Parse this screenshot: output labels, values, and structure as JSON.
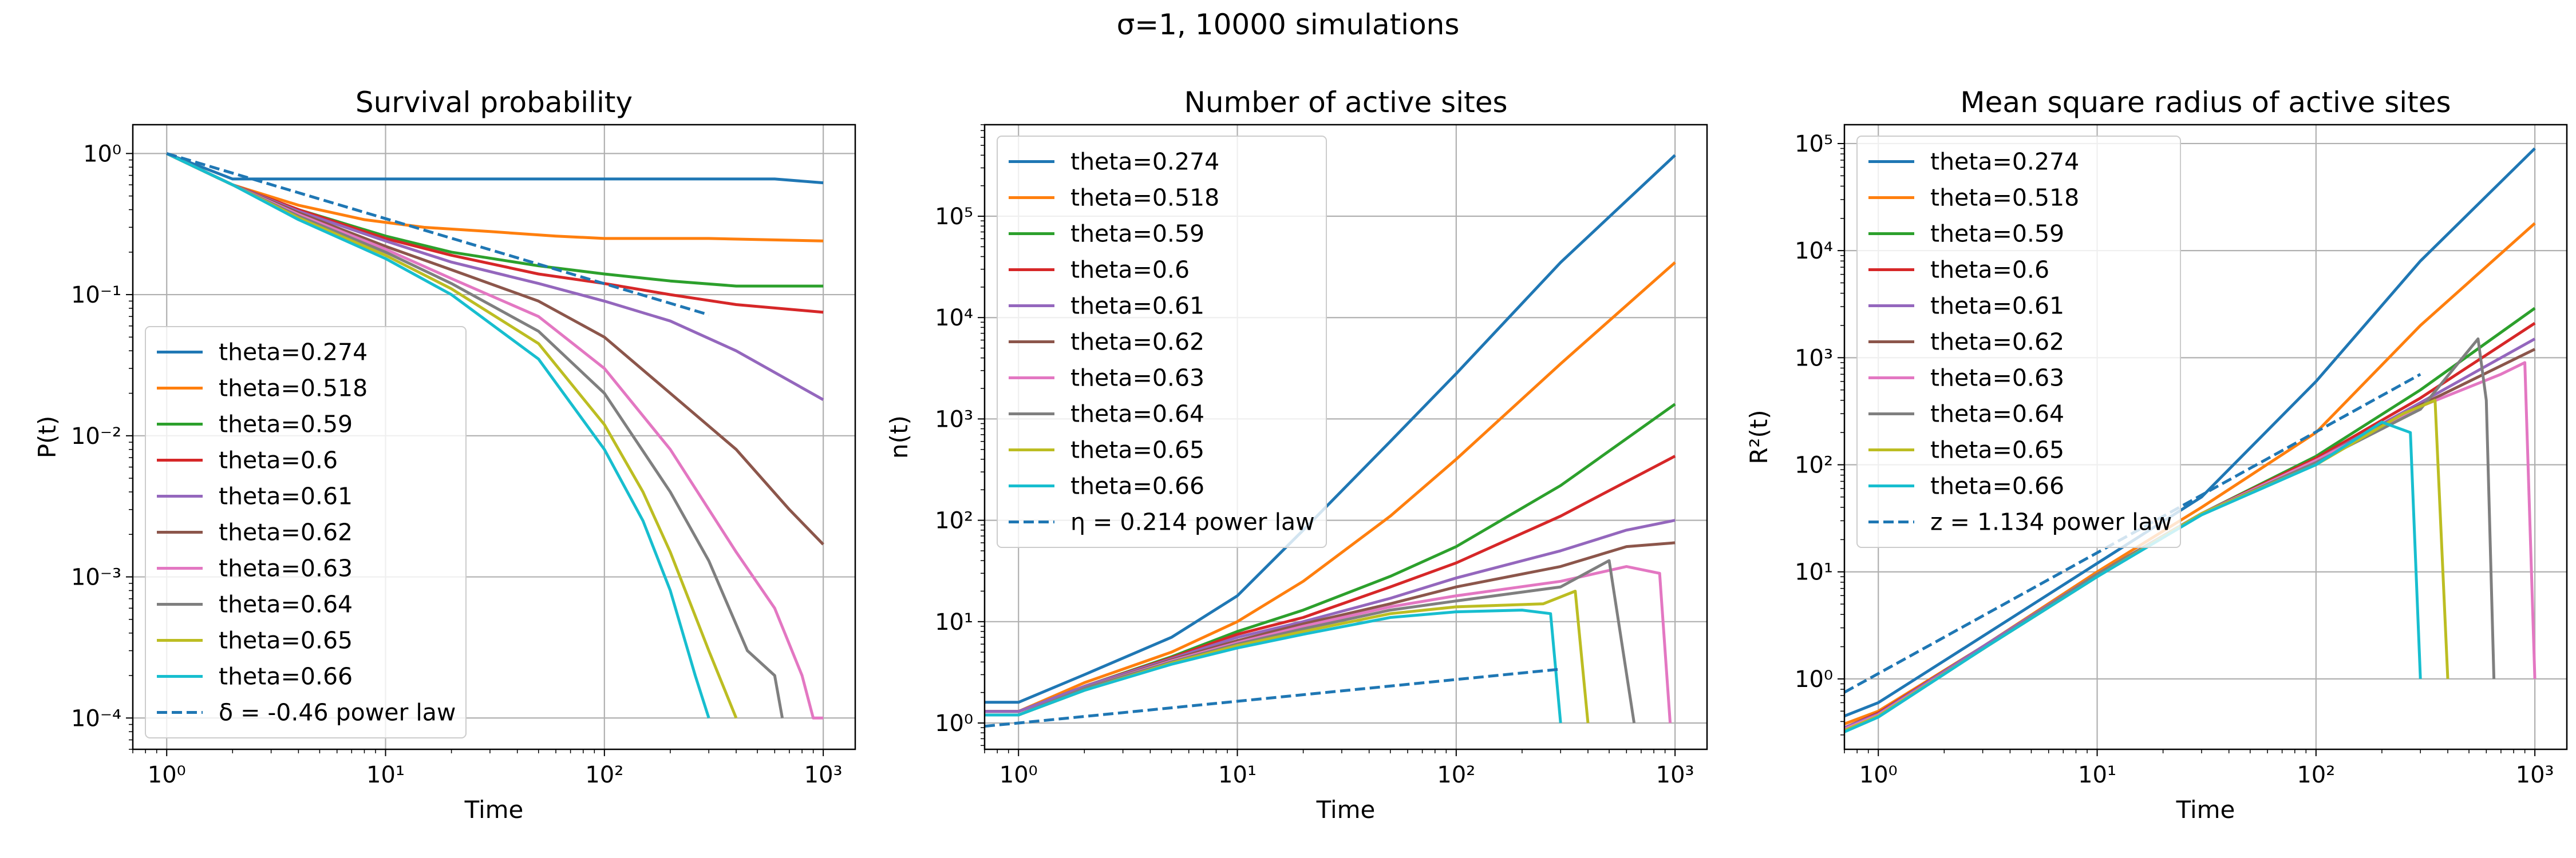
{
  "suptitle": "σ=1, 10000 simulations",
  "colors": {
    "theta=0.274": "#1f77b4",
    "theta=0.518": "#ff7f0e",
    "theta=0.59": "#2ca02c",
    "theta=0.6": "#d62728",
    "theta=0.61": "#9467bd",
    "theta=0.62": "#8c564b",
    "theta=0.63": "#e377c2",
    "theta=0.64": "#7f7f7f",
    "theta=0.65": "#bcbd22",
    "theta=0.66": "#17becf",
    "fit": "#1f77b4"
  },
  "chart_data": [
    {
      "type": "line",
      "title": "Survival probability",
      "xlabel": "Time",
      "ylabel": "P(t)",
      "xscale": "log",
      "yscale": "log",
      "xlim": [
        0.7,
        1400
      ],
      "ylim": [
        6e-05,
        1.6
      ],
      "xticks": [
        "10⁰",
        "10¹",
        "10²",
        "10³"
      ],
      "yticks": [
        "10⁻⁴",
        "10⁻³",
        "10⁻²",
        "10⁻¹",
        "10⁰"
      ],
      "grid": true,
      "legend_position": "lower-left",
      "series": [
        {
          "name": "theta=0.274",
          "x": [
            1,
            2,
            5,
            10,
            30,
            100,
            300,
            600,
            1000
          ],
          "y": [
            1,
            0.66,
            0.66,
            0.66,
            0.66,
            0.66,
            0.66,
            0.66,
            0.62
          ]
        },
        {
          "name": "theta=0.518",
          "x": [
            1,
            2,
            4,
            8,
            15,
            30,
            60,
            100,
            300,
            1000
          ],
          "y": [
            1,
            0.6,
            0.43,
            0.34,
            0.3,
            0.28,
            0.26,
            0.25,
            0.25,
            0.24
          ]
        },
        {
          "name": "theta=0.59",
          "x": [
            1,
            2,
            4,
            10,
            20,
            50,
            100,
            200,
            400,
            1000
          ],
          "y": [
            1,
            0.6,
            0.4,
            0.26,
            0.2,
            0.16,
            0.14,
            0.125,
            0.115,
            0.115
          ]
        },
        {
          "name": "theta=0.6",
          "x": [
            1,
            2,
            4,
            10,
            20,
            50,
            100,
            200,
            400,
            1000
          ],
          "y": [
            1,
            0.6,
            0.4,
            0.25,
            0.19,
            0.14,
            0.12,
            0.1,
            0.085,
            0.075
          ]
        },
        {
          "name": "theta=0.61",
          "x": [
            1,
            2,
            4,
            10,
            20,
            50,
            100,
            200,
            400,
            1000
          ],
          "y": [
            1,
            0.6,
            0.39,
            0.24,
            0.17,
            0.12,
            0.09,
            0.065,
            0.04,
            0.018
          ]
        },
        {
          "name": "theta=0.62",
          "x": [
            1,
            2,
            4,
            10,
            20,
            50,
            100,
            200,
            400,
            700,
            1000
          ],
          "y": [
            1,
            0.6,
            0.38,
            0.22,
            0.15,
            0.09,
            0.05,
            0.02,
            0.008,
            0.003,
            0.0017
          ]
        },
        {
          "name": "theta=0.63",
          "x": [
            1,
            2,
            4,
            10,
            20,
            50,
            100,
            200,
            400,
            600,
            800,
            900,
            1000
          ],
          "y": [
            1,
            0.6,
            0.37,
            0.21,
            0.13,
            0.07,
            0.03,
            0.008,
            0.0015,
            0.0006,
            0.0002,
            0.0001,
            0.0001
          ]
        },
        {
          "name": "theta=0.64",
          "x": [
            1,
            2,
            4,
            10,
            20,
            50,
            100,
            200,
            300,
            450,
            600,
            650
          ],
          "y": [
            1,
            0.6,
            0.36,
            0.2,
            0.12,
            0.055,
            0.02,
            0.004,
            0.0013,
            0.0003,
            0.0002,
            0.0001
          ]
        },
        {
          "name": "theta=0.65",
          "x": [
            1,
            2,
            4,
            10,
            20,
            50,
            100,
            150,
            200,
            300,
            400
          ],
          "y": [
            1,
            0.6,
            0.35,
            0.19,
            0.11,
            0.045,
            0.012,
            0.004,
            0.0015,
            0.0003,
            0.0001
          ]
        },
        {
          "name": "theta=0.66",
          "x": [
            1,
            2,
            4,
            10,
            20,
            50,
            100,
            150,
            200,
            260,
            300
          ],
          "y": [
            1,
            0.6,
            0.34,
            0.18,
            0.1,
            0.035,
            0.008,
            0.0025,
            0.0008,
            0.0002,
            0.0001
          ]
        },
        {
          "name": "δ = -0.46 power law",
          "dashed": true,
          "x": [
            1,
            300
          ],
          "y": [
            1,
            0.072
          ]
        }
      ]
    },
    {
      "type": "line",
      "title": "Number of active sites",
      "xlabel": "Time",
      "ylabel": "n(t)",
      "xscale": "log",
      "yscale": "log",
      "xlim": [
        0.7,
        1400
      ],
      "ylim": [
        0.55,
        800000
      ],
      "xticks": [
        "10⁰",
        "10¹",
        "10²",
        "10³"
      ],
      "yticks": [
        "10⁰",
        "10¹",
        "10²",
        "10³",
        "10⁴",
        "10⁵"
      ],
      "grid": true,
      "legend_position": "upper-left",
      "series": [
        {
          "name": "theta=0.274",
          "x": [
            0.7,
            1,
            2,
            5,
            10,
            20,
            50,
            100,
            300,
            1000
          ],
          "y": [
            1.6,
            1.6,
            3,
            7,
            18,
            80,
            600,
            2800,
            35000,
            400000
          ]
        },
        {
          "name": "theta=0.518",
          "x": [
            0.7,
            1,
            2,
            5,
            10,
            20,
            50,
            100,
            300,
            1000
          ],
          "y": [
            1.3,
            1.3,
            2.5,
            5,
            10,
            25,
            110,
            400,
            3500,
            35000
          ]
        },
        {
          "name": "theta=0.59",
          "x": [
            0.7,
            1,
            2,
            5,
            10,
            20,
            50,
            100,
            300,
            1000
          ],
          "y": [
            1.3,
            1.3,
            2.3,
            4.5,
            8,
            13,
            28,
            55,
            220,
            1400
          ]
        },
        {
          "name": "theta=0.6",
          "x": [
            0.7,
            1,
            2,
            5,
            10,
            20,
            50,
            100,
            300,
            1000
          ],
          "y": [
            1.3,
            1.3,
            2.3,
            4.4,
            7.5,
            11,
            22,
            38,
            110,
            430
          ]
        },
        {
          "name": "theta=0.61",
          "x": [
            0.7,
            1,
            2,
            5,
            10,
            20,
            50,
            100,
            300,
            600,
            1000
          ],
          "y": [
            1.3,
            1.3,
            2.3,
            4.3,
            7,
            10,
            17,
            27,
            50,
            80,
            100
          ]
        },
        {
          "name": "theta=0.62",
          "x": [
            0.7,
            1,
            2,
            5,
            10,
            20,
            50,
            100,
            300,
            600,
            1000
          ],
          "y": [
            1.2,
            1.2,
            2.2,
            4.2,
            6.5,
            9.5,
            15,
            22,
            35,
            55,
            60
          ]
        },
        {
          "name": "theta=0.63",
          "x": [
            0.7,
            1,
            2,
            5,
            10,
            20,
            50,
            100,
            300,
            600,
            850,
            950
          ],
          "y": [
            1.2,
            1.2,
            2.2,
            4.1,
            6.2,
            9,
            14,
            18,
            25,
            35,
            30,
            1
          ]
        },
        {
          "name": "theta=0.64",
          "x": [
            0.7,
            1,
            2,
            5,
            10,
            20,
            50,
            100,
            300,
            500,
            650
          ],
          "y": [
            1.2,
            1.2,
            2.2,
            4,
            6,
            8.5,
            13,
            16,
            22,
            40,
            1
          ]
        },
        {
          "name": "theta=0.65",
          "x": [
            0.7,
            1,
            2,
            5,
            10,
            20,
            50,
            100,
            250,
            350,
            400
          ],
          "y": [
            1.2,
            1.2,
            2.1,
            3.9,
            5.8,
            8,
            12,
            14,
            15,
            20,
            1
          ]
        },
        {
          "name": "theta=0.66",
          "x": [
            0.7,
            1,
            2,
            5,
            10,
            20,
            50,
            100,
            200,
            270,
            300
          ],
          "y": [
            1.2,
            1.2,
            2.1,
            3.8,
            5.5,
            7.5,
            11,
            12.5,
            13,
            12,
            1
          ]
        },
        {
          "name": "η = 0.214 power law",
          "dashed": true,
          "x": [
            0.7,
            1,
            300
          ],
          "y": [
            0.93,
            1,
            3.4
          ]
        }
      ]
    },
    {
      "type": "line",
      "title": "Mean square radius of active sites",
      "xlabel": "Time",
      "ylabel": "R²(t)",
      "xscale": "log",
      "yscale": "log",
      "xlim": [
        0.7,
        1400
      ],
      "ylim": [
        0.22,
        150000
      ],
      "xticks": [
        "10⁰",
        "10¹",
        "10²",
        "10³"
      ],
      "yticks": [
        "10⁰",
        "10¹",
        "10²",
        "10³",
        "10⁴",
        "10⁵"
      ],
      "grid": true,
      "legend_position": "upper-left",
      "series": [
        {
          "name": "theta=0.274",
          "x": [
            0.7,
            1,
            3,
            10,
            30,
            100,
            300,
            1000
          ],
          "y": [
            0.45,
            0.6,
            2.5,
            12,
            50,
            600,
            8000,
            90000
          ]
        },
        {
          "name": "theta=0.518",
          "x": [
            0.7,
            1,
            3,
            10,
            30,
            100,
            300,
            1000
          ],
          "y": [
            0.38,
            0.5,
            2,
            10,
            40,
            200,
            2000,
            18000
          ]
        },
        {
          "name": "theta=0.59",
          "x": [
            0.7,
            1,
            3,
            10,
            30,
            100,
            300,
            1000
          ],
          "y": [
            0.35,
            0.48,
            2,
            9.5,
            35,
            120,
            500,
            2900
          ]
        },
        {
          "name": "theta=0.6",
          "x": [
            0.7,
            1,
            3,
            10,
            30,
            100,
            300,
            1000
          ],
          "y": [
            0.35,
            0.48,
            2,
            9.5,
            35,
            115,
            420,
            2100
          ]
        },
        {
          "name": "theta=0.61",
          "x": [
            0.7,
            1,
            3,
            10,
            30,
            100,
            300,
            1000
          ],
          "y": [
            0.35,
            0.47,
            2,
            9.5,
            35,
            110,
            380,
            1500
          ]
        },
        {
          "name": "theta=0.62",
          "x": [
            0.7,
            1,
            3,
            10,
            30,
            100,
            300,
            1000
          ],
          "y": [
            0.34,
            0.46,
            1.9,
            9.5,
            35,
            110,
            360,
            1200
          ]
        },
        {
          "name": "theta=0.63",
          "x": [
            0.7,
            1,
            3,
            10,
            30,
            100,
            300,
            700,
            900,
            1000
          ],
          "y": [
            0.34,
            0.46,
            1.9,
            9.5,
            35,
            110,
            350,
            700,
            900,
            1
          ]
        },
        {
          "name": "theta=0.64",
          "x": [
            0.7,
            1,
            3,
            10,
            30,
            100,
            300,
            550,
            600,
            650
          ],
          "y": [
            0.33,
            0.45,
            1.9,
            9.5,
            35,
            105,
            330,
            1500,
            400,
            1
          ]
        },
        {
          "name": "theta=0.65",
          "x": [
            0.7,
            1,
            3,
            10,
            30,
            100,
            250,
            350,
            400
          ],
          "y": [
            0.33,
            0.45,
            1.9,
            9,
            35,
            100,
            300,
            400,
            1
          ]
        },
        {
          "name": "theta=0.66",
          "x": [
            0.7,
            1,
            3,
            10,
            30,
            100,
            200,
            270,
            300
          ],
          "y": [
            0.32,
            0.44,
            1.9,
            9,
            34,
            100,
            250,
            200,
            1
          ]
        },
        {
          "name": "z = 1.134 power law",
          "dashed": true,
          "x": [
            0.7,
            300
          ],
          "y": [
            0.75,
            700
          ]
        }
      ]
    }
  ]
}
